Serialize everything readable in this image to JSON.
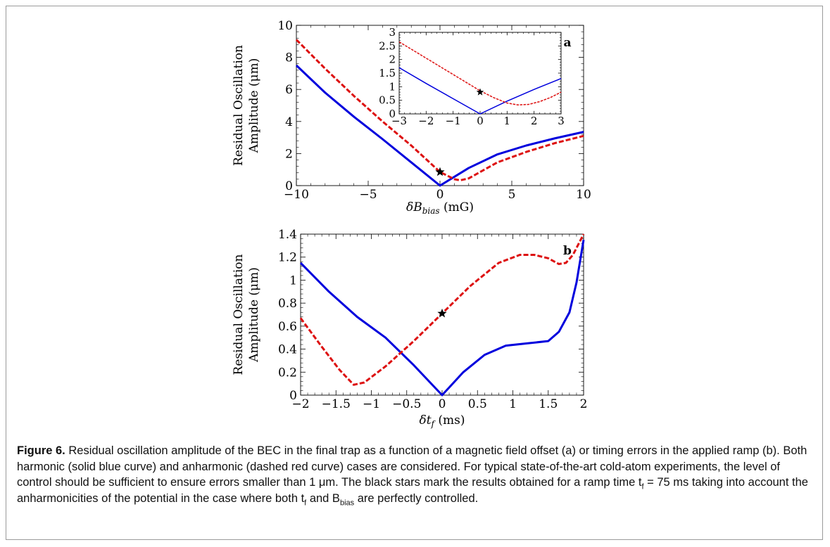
{
  "figure": {
    "caption_label": "Figure 6.",
    "caption_text": "Residual oscillation amplitude of the BEC in the final trap as a function of a magnetic field offset (a) or timing errors in the applied ramp (b). Both harmonic (solid blue curve) and anharmonic (dashed red curve) cases are considered. For typical state-of-the-art cold-atom experiments, the level of control should be sufficient to ensure errors smaller than 1 μm. The black stars mark the results obtained for a ramp time t",
    "caption_sub_f": "f",
    "caption_text_2": " = 75 ms taking into account the anharmonicities of the potential in the case where both t",
    "caption_text_3": " and B",
    "caption_sub_bias": "bias",
    "caption_text_4": " are perfectly controlled.",
    "colors": {
      "harmonic": "#0000dd",
      "anharmonic": "#dd1111",
      "star": "#000000"
    }
  },
  "chart_data": [
    {
      "id": "a",
      "type": "line",
      "panel_letter": "a",
      "ylabel_line1": "Residual Oscillation",
      "ylabel_line2": "Amplitude (μm)",
      "xlabel": "δB",
      "xlabel_sub": "bias",
      "xlabel_unit": " (mG)",
      "xlim": [
        -10,
        10
      ],
      "ylim": [
        0,
        10
      ],
      "xticks": [
        "−10",
        "−5",
        "0",
        "5",
        "10"
      ],
      "xtick_values": [
        -10,
        -5,
        0,
        5,
        10
      ],
      "yticks": [
        "0",
        "2",
        "4",
        "6",
        "8",
        "10"
      ],
      "ytick_values": [
        0,
        2,
        4,
        6,
        8,
        10
      ],
      "series": [
        {
          "style": "solid",
          "color": "#0000dd",
          "x": [
            -10,
            -8,
            -6,
            -4,
            -2,
            0,
            2,
            4,
            6,
            8,
            10
          ],
          "y": [
            7.5,
            5.8,
            4.3,
            2.9,
            1.45,
            0.0,
            1.1,
            1.95,
            2.5,
            2.95,
            3.35
          ]
        },
        {
          "style": "dashed",
          "color": "#dd1111",
          "x": [
            -10,
            -8,
            -6,
            -4,
            -2,
            0,
            1,
            1.4,
            2,
            4,
            6,
            8,
            10
          ],
          "y": [
            9.1,
            7.3,
            5.6,
            4.0,
            2.5,
            0.85,
            0.4,
            0.33,
            0.45,
            1.45,
            2.1,
            2.65,
            3.1
          ]
        }
      ],
      "star": {
        "x": 0,
        "y": 0.85
      },
      "inset": {
        "xlim": [
          -3,
          3
        ],
        "ylim": [
          0,
          3
        ],
        "xticks": [
          "−3",
          "−2",
          "−1",
          "0",
          "1",
          "2",
          "3"
        ],
        "xtick_values": [
          -3,
          -2,
          -1,
          0,
          1,
          2,
          3
        ],
        "yticks": [
          "0",
          "0.5",
          "1",
          "1.5",
          "2",
          "2.5",
          "3"
        ],
        "ytick_values": [
          0,
          0.5,
          1,
          1.5,
          2,
          2.5,
          3
        ],
        "series": [
          {
            "style": "solid",
            "color": "#0000dd",
            "x": [
              -3,
              -2,
              -1,
              0,
              1,
              2,
              3
            ],
            "y": [
              1.7,
              1.12,
              0.56,
              0.0,
              0.47,
              0.9,
              1.3
            ]
          },
          {
            "style": "dashed",
            "color": "#dd1111",
            "x": [
              -3,
              -2,
              -1,
              0,
              0.5,
              1,
              1.4,
              1.8,
              2.2,
              2.6,
              3
            ],
            "y": [
              2.65,
              2.05,
              1.45,
              0.85,
              0.6,
              0.4,
              0.33,
              0.35,
              0.45,
              0.6,
              0.8
            ]
          }
        ],
        "star": {
          "x": 0,
          "y": 0.8
        }
      }
    },
    {
      "id": "b",
      "type": "line",
      "panel_letter": "b",
      "ylabel_line1": "Residual Oscillation",
      "ylabel_line2": "Amplitude (μm)",
      "xlabel": "δt",
      "xlabel_sub": "f",
      "xlabel_unit": " (ms)",
      "xlim": [
        -2,
        2
      ],
      "ylim": [
        0,
        1.4
      ],
      "xticks": [
        "−2",
        "−1.5",
        "−1",
        "−0.5",
        "0",
        "0.5",
        "1",
        "1.5",
        "2"
      ],
      "xtick_values": [
        -2,
        -1.5,
        -1,
        -0.5,
        0,
        0.5,
        1,
        1.5,
        2
      ],
      "yticks": [
        "0",
        "0.2",
        "0.4",
        "0.6",
        "0.8",
        "1",
        "1.2",
        "1.4"
      ],
      "ytick_values": [
        0,
        0.2,
        0.4,
        0.6,
        0.8,
        1.0,
        1.2,
        1.4
      ],
      "series": [
        {
          "style": "solid",
          "color": "#0000dd",
          "x": [
            -2,
            -1.6,
            -1.2,
            -0.8,
            -0.4,
            0,
            0.3,
            0.6,
            0.9,
            1.2,
            1.5,
            1.65,
            1.8,
            1.9,
            2
          ],
          "y": [
            1.15,
            0.9,
            0.68,
            0.5,
            0.26,
            0.0,
            0.2,
            0.35,
            0.43,
            0.45,
            0.47,
            0.55,
            0.72,
            0.98,
            1.35
          ]
        },
        {
          "style": "dashed",
          "color": "#dd1111",
          "x": [
            -2,
            -1.7,
            -1.45,
            -1.25,
            -1.1,
            -0.8,
            -0.4,
            0,
            0.4,
            0.8,
            1.1,
            1.3,
            1.5,
            1.65,
            1.75,
            1.85,
            2
          ],
          "y": [
            0.67,
            0.42,
            0.22,
            0.09,
            0.11,
            0.25,
            0.47,
            0.71,
            0.95,
            1.15,
            1.22,
            1.22,
            1.19,
            1.14,
            1.15,
            1.22,
            1.4
          ]
        }
      ],
      "star": {
        "x": 0,
        "y": 0.71
      }
    }
  ]
}
